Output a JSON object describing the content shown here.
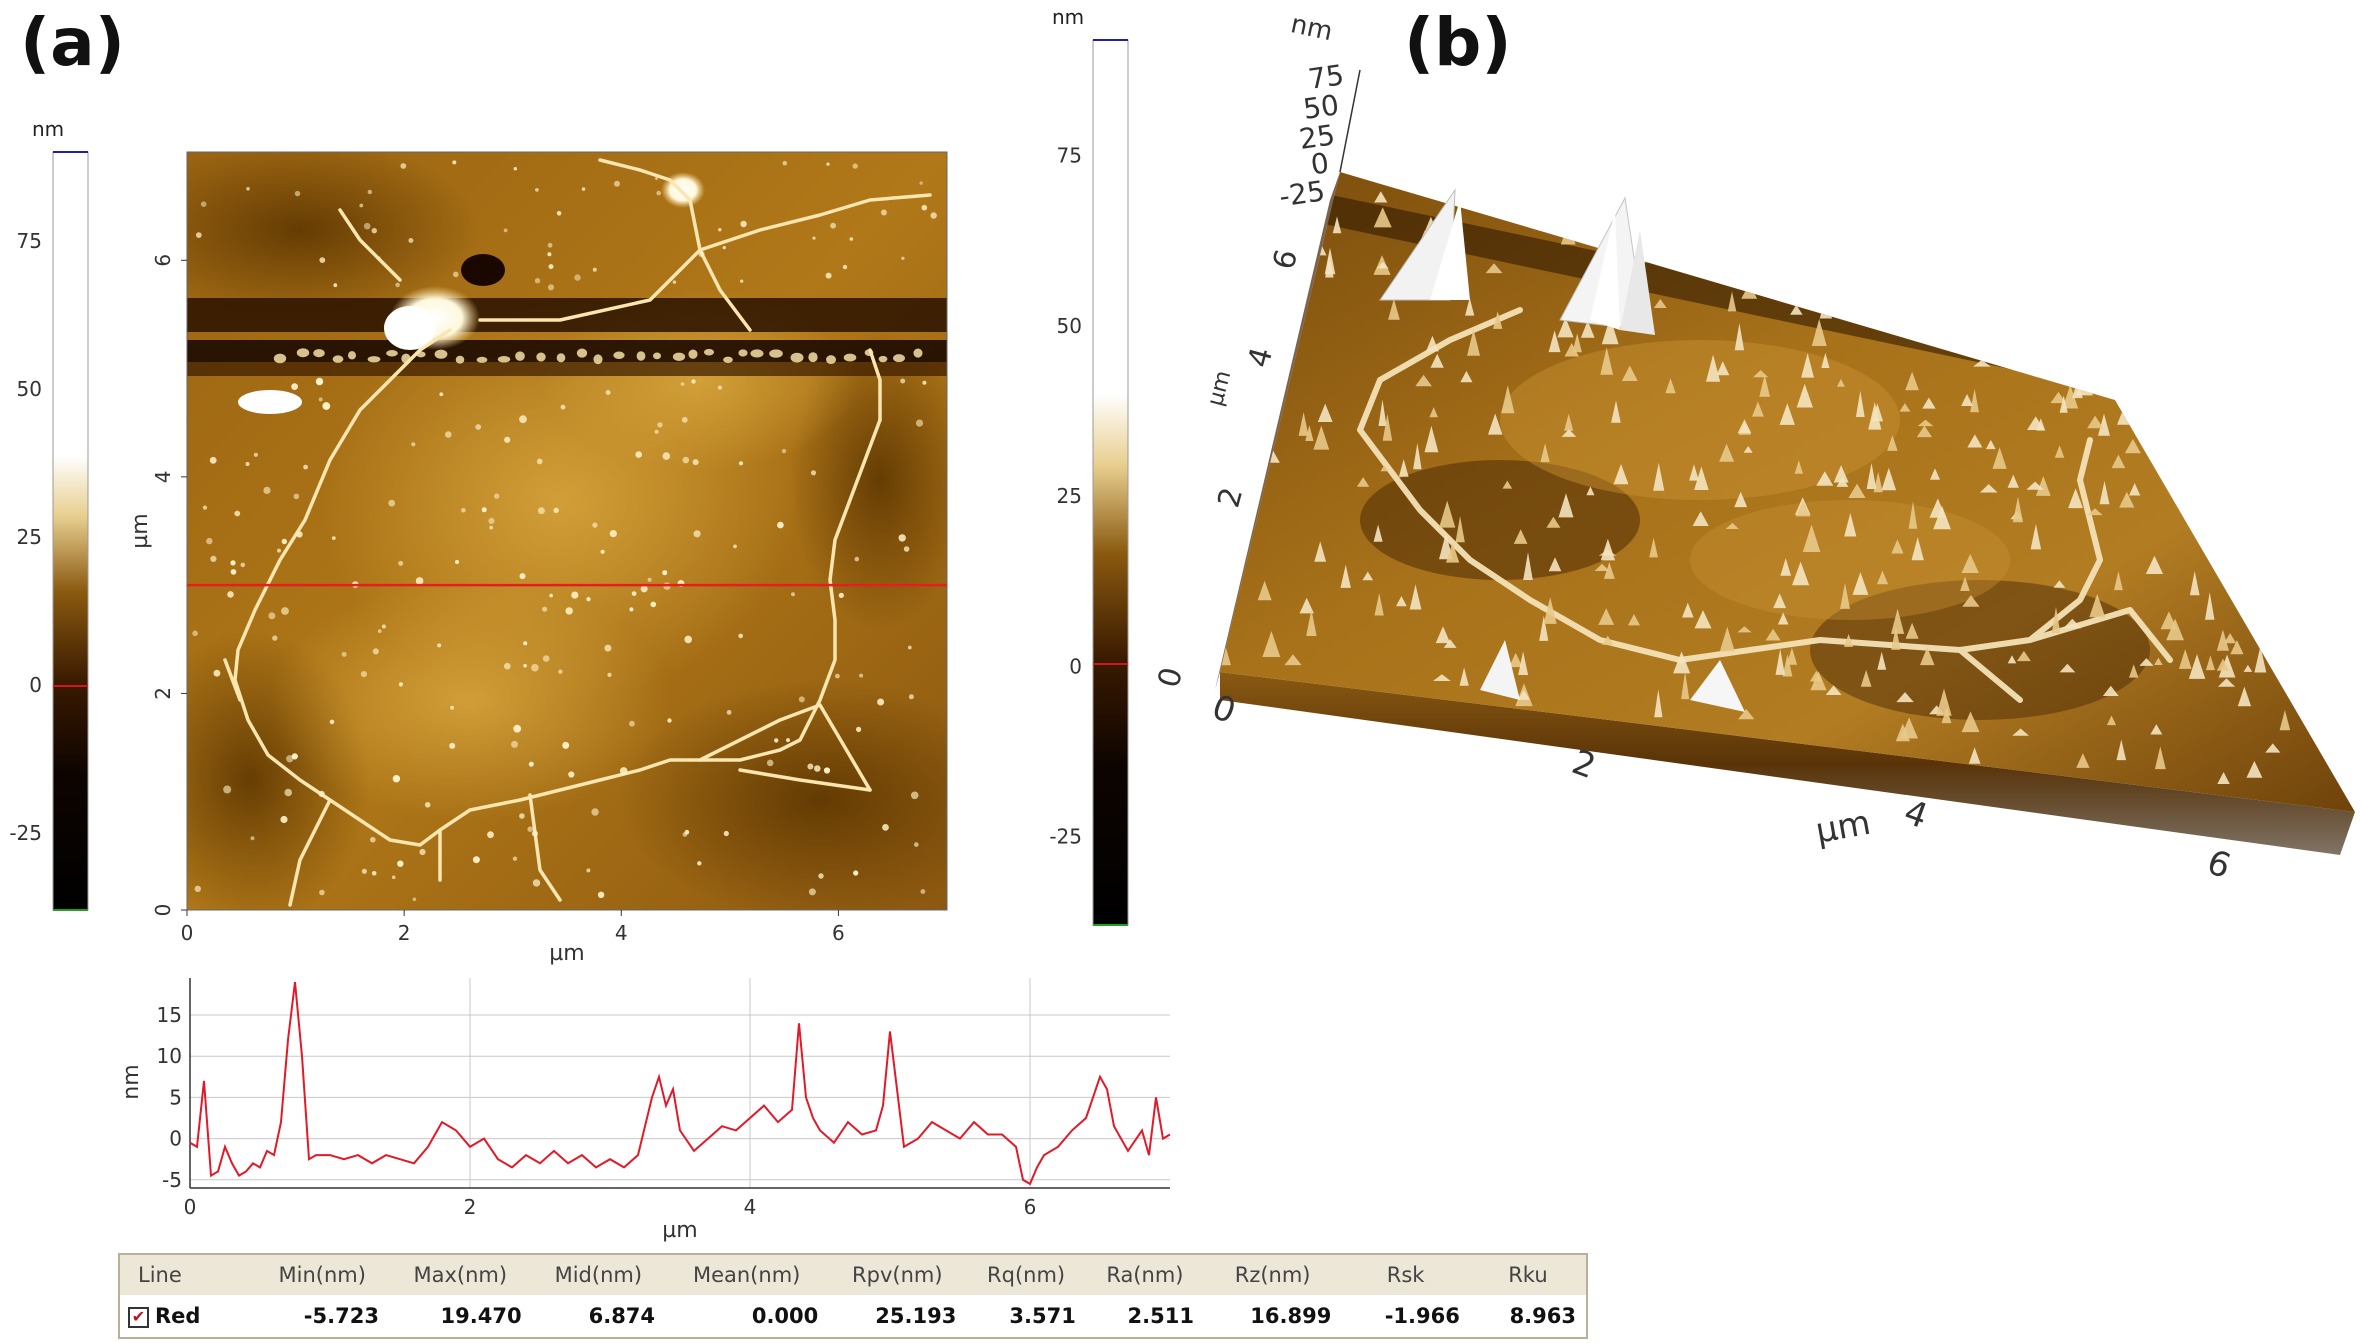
{
  "panels": {
    "a": "(a)",
    "b": "(b)"
  },
  "colorscale_a": {
    "unit": "nm",
    "ticks": [
      "75",
      "50",
      "25",
      "0",
      "-25"
    ],
    "tick_values": [
      75,
      50,
      25,
      0,
      -25
    ],
    "range": [
      -38,
      90
    ]
  },
  "colorscale_b": {
    "unit": "nm",
    "ticks": [
      "75",
      "50",
      "25",
      "0",
      "-25"
    ],
    "tick_values": [
      75,
      50,
      25,
      0,
      -25
    ],
    "range": [
      -38,
      92
    ]
  },
  "colors": {
    "afm_dark": "#3a1c00",
    "afm_mid": "#a86c12",
    "afm_light": "#f2d890",
    "line_marker": "#e81e1e",
    "profile_line": "#e11a2a"
  },
  "chart_data": [
    {
      "type": "heatmap",
      "title": "",
      "xlabel": "µm",
      "ylabel": "µm",
      "x_ticks": [
        "0",
        "2",
        "4",
        "6"
      ],
      "y_ticks": [
        "0",
        "2",
        "4",
        "6"
      ],
      "xlim": [
        0,
        7
      ],
      "ylim": [
        0,
        7
      ],
      "marker_line_y": 3.0
    },
    {
      "type": "line",
      "xlabel": "µm",
      "ylabel": "nm",
      "x_ticks": [
        "0",
        "2",
        "4",
        "6"
      ],
      "y_ticks": [
        "15",
        "10",
        "5",
        "0",
        "-5"
      ],
      "xlim": [
        0,
        7
      ],
      "ylim": [
        -6,
        19.5
      ],
      "grid": true,
      "x": [
        0.0,
        0.05,
        0.1,
        0.15,
        0.2,
        0.25,
        0.3,
        0.35,
        0.4,
        0.45,
        0.5,
        0.55,
        0.6,
        0.65,
        0.7,
        0.75,
        0.8,
        0.85,
        0.9,
        1.0,
        1.1,
        1.2,
        1.3,
        1.4,
        1.5,
        1.6,
        1.7,
        1.8,
        1.9,
        2.0,
        2.1,
        2.2,
        2.3,
        2.4,
        2.5,
        2.6,
        2.7,
        2.8,
        2.9,
        3.0,
        3.1,
        3.2,
        3.3,
        3.35,
        3.4,
        3.45,
        3.5,
        3.6,
        3.7,
        3.8,
        3.9,
        4.0,
        4.1,
        4.2,
        4.3,
        4.35,
        4.4,
        4.45,
        4.5,
        4.6,
        4.7,
        4.8,
        4.9,
        4.95,
        5.0,
        5.05,
        5.1,
        5.2,
        5.3,
        5.4,
        5.5,
        5.6,
        5.7,
        5.8,
        5.9,
        5.95,
        6.0,
        6.05,
        6.1,
        6.2,
        6.3,
        6.4,
        6.45,
        6.5,
        6.55,
        6.6,
        6.7,
        6.8,
        6.85,
        6.9,
        6.95,
        7.0
      ],
      "series": [
        {
          "values": [
            -0.5,
            -1.0,
            7.0,
            -4.5,
            -4.0,
            -1.0,
            -3.0,
            -4.5,
            -4.0,
            -3.0,
            -3.5,
            -1.5,
            -2.0,
            2.0,
            12.0,
            19.0,
            10.0,
            -2.5,
            -2.0,
            -2.0,
            -2.5,
            -2.0,
            -3.0,
            -2.0,
            -2.5,
            -3.0,
            -1.0,
            2.0,
            1.0,
            -1.0,
            0.0,
            -2.5,
            -3.5,
            -2.0,
            -3.0,
            -1.5,
            -3.0,
            -2.0,
            -3.5,
            -2.5,
            -3.5,
            -2.0,
            5.0,
            7.5,
            4.0,
            6.0,
            1.0,
            -1.5,
            0.0,
            1.5,
            1.0,
            2.5,
            4.0,
            2.0,
            3.5,
            14.0,
            5.0,
            2.5,
            1.0,
            -0.5,
            2.0,
            0.5,
            1.0,
            4.0,
            13.0,
            6.0,
            -1.0,
            0.0,
            2.0,
            1.0,
            0.0,
            2.0,
            0.5,
            0.5,
            -1.0,
            -5.0,
            -5.5,
            -3.5,
            -2.0,
            -1.0,
            1.0,
            2.5,
            5.0,
            7.5,
            6.0,
            1.5,
            -1.5,
            1.0,
            -2.0,
            5.0,
            0.0,
            0.5
          ]
        }
      ]
    },
    {
      "type": "table",
      "columns": [
        "Line",
        "Min(nm)",
        "Max(nm)",
        "Mid(nm)",
        "Mean(nm)",
        "Rpv(nm)",
        "Rq(nm)",
        "Ra(nm)",
        "Rz(nm)",
        "Rsk",
        "Rku"
      ],
      "rows": [
        [
          "Red",
          "-5.723",
          "19.470",
          "6.874",
          "0.000",
          "25.193",
          "3.571",
          "2.511",
          "16.899",
          "-1.966",
          "8.963"
        ]
      ]
    },
    {
      "type": "heatmap",
      "title": "",
      "z_label": "nm",
      "z_ticks": [
        "75",
        "50",
        "25",
        "0",
        "-25"
      ],
      "y_label": "µm",
      "y_ticks": [
        "0",
        "2",
        "4",
        "6"
      ],
      "x_label": "µm",
      "x_ticks": [
        "0",
        "2",
        "4",
        "6"
      ]
    }
  ]
}
